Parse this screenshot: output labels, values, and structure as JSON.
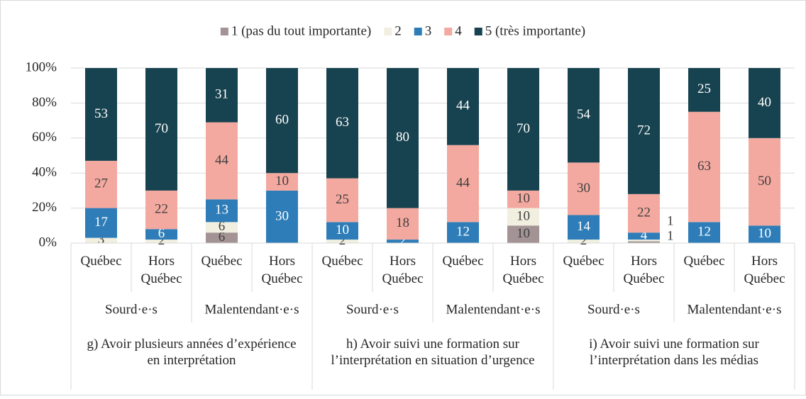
{
  "chart_data": {
    "type": "stacked_bar",
    "categories": [
      "Québec",
      "Hors Québec",
      "Québec",
      "Hors Québec",
      "Québec",
      "Hors Québec",
      "Québec",
      "Hors Québec",
      "Québec",
      "Hors Québec",
      "Québec",
      "Hors Québec"
    ],
    "group_labels": [
      "Sourd·e·s",
      "Malentendant·e·s",
      "Sourd·e·s",
      "Malentendant·e·s",
      "Sourd·e·s",
      "Malentendant·e·s"
    ],
    "question_labels": [
      "g) Avoir plusieurs années d’expérience en interprétation",
      "h) Avoir suivi une formation sur l’interprétation en situation d’urgence",
      "i) Avoir suivi une formation sur l’interprétation dans les médias"
    ],
    "series": [
      {
        "name": "1 (pas du tout importante)",
        "color": "#a39394",
        "values": [
          0,
          0,
          6,
          0,
          0,
          0,
          0,
          10,
          0,
          1,
          0,
          0
        ]
      },
      {
        "name": "2",
        "color": "#f0efe0",
        "values": [
          3,
          2,
          6,
          0,
          2,
          0,
          0,
          10,
          2,
          1,
          0,
          0
        ]
      },
      {
        "name": "3",
        "color": "#2e7db8",
        "values": [
          17,
          6,
          13,
          30,
          10,
          2,
          12,
          0,
          14,
          4,
          12,
          10
        ]
      },
      {
        "name": "4",
        "color": "#f4a9a0",
        "values": [
          27,
          22,
          44,
          10,
          25,
          18,
          44,
          10,
          30,
          22,
          63,
          50
        ]
      },
      {
        "name": "5 (très importante)",
        "color": "#17424f",
        "values": [
          53,
          70,
          31,
          60,
          63,
          80,
          44,
          70,
          54,
          72,
          25,
          40
        ]
      }
    ],
    "ylim": [
      0,
      100
    ],
    "yticks": [
      {
        "value": 0,
        "label": "0%"
      },
      {
        "value": 20,
        "label": "20%"
      },
      {
        "value": 40,
        "label": "40%"
      },
      {
        "value": 60,
        "label": "60%"
      },
      {
        "value": 80,
        "label": "80%"
      },
      {
        "value": 100,
        "label": "100%"
      }
    ],
    "grid": true,
    "legend": "top"
  }
}
